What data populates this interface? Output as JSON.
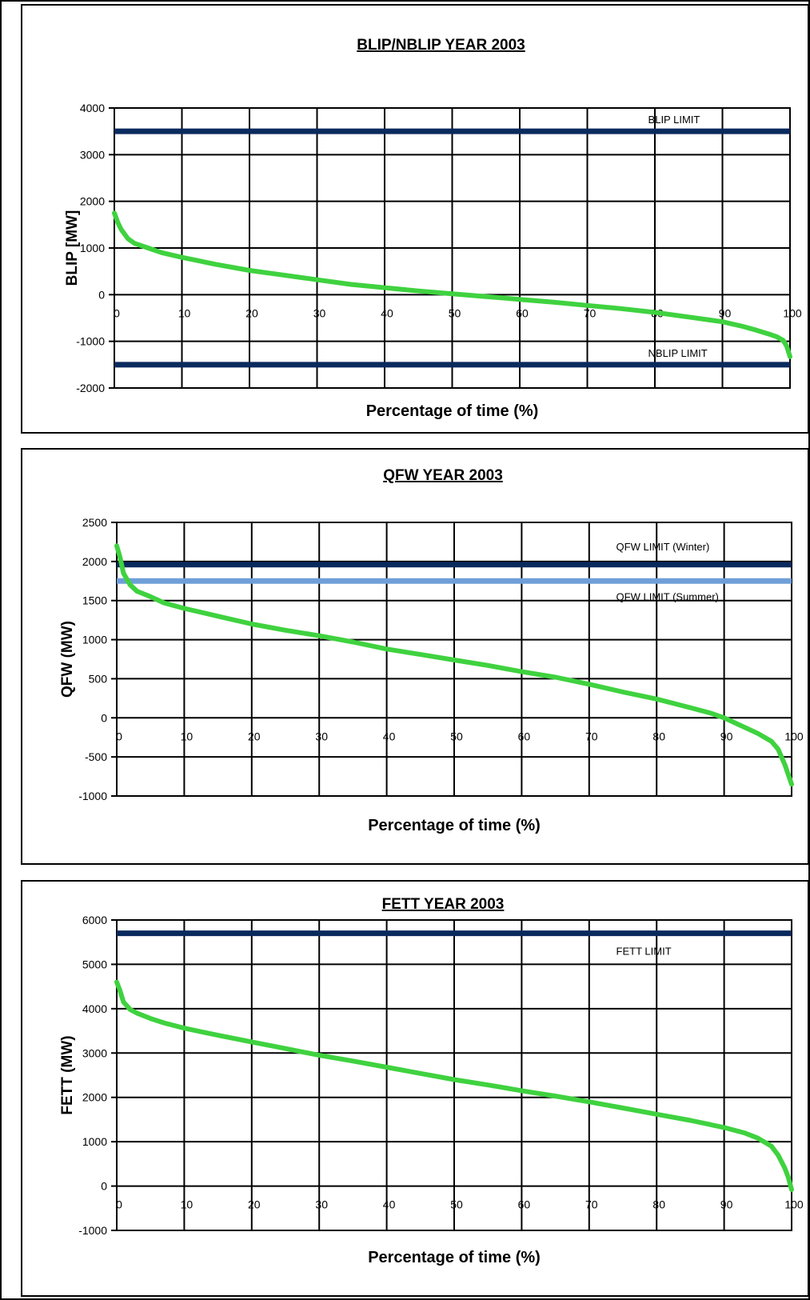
{
  "chart_data": [
    {
      "type": "line",
      "title": "BLIP/NBLIP YEAR 2003",
      "xlabel": "Percentage of time (%)",
      "ylabel": "BLIP [MW]",
      "xlim": [
        0,
        100
      ],
      "ylim": [
        -2000,
        4000
      ],
      "xticks": [
        0,
        10,
        20,
        30,
        40,
        50,
        60,
        70,
        80,
        90,
        100
      ],
      "yticks": [
        -2000,
        -1000,
        0,
        1000,
        2000,
        3000,
        4000
      ],
      "grid": true,
      "limits": [
        {
          "label": "BLIP LIMIT",
          "value": 3500,
          "color": "#0a2a5e"
        },
        {
          "label": "NBLIP LIMIT",
          "value": -1500,
          "color": "#0a2a5e"
        }
      ],
      "series": [
        {
          "color": "#3fd23f",
          "x": [
            0,
            0.5,
            1,
            2,
            3,
            5,
            7,
            10,
            15,
            20,
            25,
            30,
            35,
            40,
            45,
            50,
            55,
            60,
            65,
            70,
            75,
            80,
            85,
            90,
            93,
            95,
            97,
            98,
            99,
            99.5,
            100
          ],
          "y": [
            1750,
            1550,
            1400,
            1200,
            1100,
            1000,
            900,
            800,
            650,
            520,
            420,
            320,
            220,
            150,
            80,
            20,
            -40,
            -100,
            -160,
            -230,
            -300,
            -380,
            -480,
            -580,
            -680,
            -760,
            -850,
            -900,
            -980,
            -1100,
            -1330
          ]
        }
      ]
    },
    {
      "type": "line",
      "title": "QFW YEAR 2003",
      "xlabel": "Percentage of time (%)",
      "ylabel": "QFW (MW)",
      "xlim": [
        0,
        100
      ],
      "ylim": [
        -1000,
        2500
      ],
      "xticks": [
        0,
        10,
        20,
        30,
        40,
        50,
        60,
        70,
        80,
        90,
        100
      ],
      "yticks": [
        -1000,
        -500,
        0,
        500,
        1000,
        1500,
        2000,
        2500
      ],
      "grid": true,
      "limits": [
        {
          "label": "QFW LIMIT (Winter)",
          "value": 1960,
          "color": "#0a2a5e"
        },
        {
          "label": "QFW LIMIT (Summer)",
          "value": 1750,
          "color": "#6f9fd8"
        }
      ],
      "series": [
        {
          "color": "#3fd23f",
          "x": [
            0,
            0.5,
            1,
            2,
            3,
            5,
            7,
            10,
            15,
            20,
            25,
            30,
            35,
            40,
            45,
            50,
            55,
            60,
            65,
            70,
            75,
            80,
            85,
            88,
            90,
            92,
            95,
            97,
            98,
            99,
            100
          ],
          "y": [
            2200,
            2050,
            1850,
            1700,
            1620,
            1550,
            1470,
            1400,
            1300,
            1200,
            1120,
            1050,
            970,
            880,
            810,
            740,
            670,
            590,
            520,
            430,
            330,
            240,
            130,
            60,
            0,
            -80,
            -200,
            -300,
            -400,
            -600,
            -850
          ]
        }
      ]
    },
    {
      "type": "line",
      "title": "FETT YEAR 2003",
      "xlabel": "Percentage of time (%)",
      "ylabel": "FETT (MW)",
      "xlim": [
        0,
        100
      ],
      "ylim": [
        -1000,
        6000
      ],
      "xticks": [
        0,
        10,
        20,
        30,
        40,
        50,
        60,
        70,
        80,
        90,
        100
      ],
      "yticks": [
        -1000,
        0,
        1000,
        2000,
        3000,
        4000,
        5000,
        6000
      ],
      "grid": true,
      "limits": [
        {
          "label": "FETT LIMIT",
          "value": 5700,
          "color": "#0a2a5e"
        }
      ],
      "series": [
        {
          "color": "#3fd23f",
          "x": [
            0,
            0.5,
            1,
            2,
            3,
            5,
            7,
            10,
            15,
            20,
            25,
            30,
            35,
            40,
            45,
            50,
            55,
            60,
            65,
            70,
            75,
            80,
            85,
            90,
            93,
            95,
            97,
            98,
            99,
            99.5,
            100
          ],
          "y": [
            4600,
            4400,
            4150,
            3980,
            3900,
            3780,
            3680,
            3560,
            3400,
            3250,
            3100,
            2950,
            2820,
            2680,
            2540,
            2400,
            2280,
            2150,
            2030,
            1900,
            1760,
            1620,
            1480,
            1320,
            1200,
            1080,
            900,
            700,
            400,
            200,
            -80
          ]
        }
      ]
    }
  ]
}
